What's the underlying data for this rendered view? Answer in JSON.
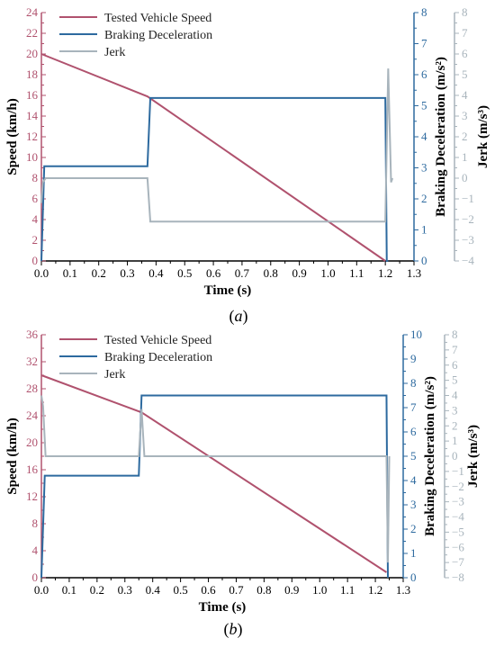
{
  "colors": {
    "speed": "#b0526e",
    "braking": "#2d6a9f",
    "jerk": "#a8b4bc",
    "axis_x": "#000000"
  },
  "chart_data": [
    {
      "type": "line",
      "panel_label_parts": [
        "(",
        "a",
        ")"
      ],
      "xlabel": "Time (s)",
      "xlim": [
        0,
        1.3
      ],
      "xticks": [
        "0.0",
        "0.1",
        "0.2",
        "0.3",
        "0.4",
        "0.5",
        "0.6",
        "0.7",
        "0.8",
        "0.9",
        "1.0",
        "1.1",
        "1.2",
        "1.3"
      ],
      "y_axes": [
        {
          "label": "Speed (km/h)",
          "ylim": [
            0,
            24
          ],
          "ticks": [
            "0",
            "2",
            "4",
            "6",
            "8",
            "10",
            "12",
            "14",
            "16",
            "18",
            "20",
            "22",
            "24"
          ]
        },
        {
          "label": "Braking Deceleration (m/s²)",
          "ylim": [
            0,
            8
          ],
          "ticks": [
            "0",
            "1",
            "2",
            "3",
            "4",
            "5",
            "6",
            "7",
            "8"
          ]
        },
        {
          "label": "Jerk (m/s³)",
          "ylim": [
            -4,
            8
          ],
          "ticks": [
            "−4",
            "−3",
            "−2",
            "−1",
            "0",
            "1",
            "2",
            "3",
            "4",
            "5",
            "6",
            "7",
            "8"
          ]
        }
      ],
      "legend": [
        "Tested Vehicle Speed",
        "Braking Deceleration",
        "Jerk"
      ],
      "legend_position": "top-left",
      "series": [
        {
          "name": "Tested Vehicle Speed",
          "axis": 0,
          "x": [
            0.0,
            0.37,
            1.2
          ],
          "y": [
            20.0,
            15.9,
            0.0
          ]
        },
        {
          "name": "Braking Deceleration",
          "axis": 1,
          "x": [
            0.0,
            0.01,
            0.37,
            0.38,
            1.2,
            1.205,
            1.21
          ],
          "y": [
            0.0,
            3.05,
            3.05,
            5.25,
            5.25,
            0.0,
            0.0
          ]
        },
        {
          "name": "Jerk",
          "axis": 2,
          "x": [
            0.0,
            0.005,
            0.015,
            0.37,
            0.38,
            1.2,
            1.21,
            1.22,
            1.225
          ],
          "y": [
            -1.2,
            -0.2,
            0.0,
            0.0,
            -2.1,
            -2.1,
            5.3,
            -0.2,
            0.0
          ]
        }
      ]
    },
    {
      "type": "line",
      "panel_label_parts": [
        "(",
        "b",
        ")"
      ],
      "xlabel": "Time (s)",
      "xlim": [
        0,
        1.3
      ],
      "xticks": [
        "0.0",
        "0.1",
        "0.2",
        "0.3",
        "0.4",
        "0.5",
        "0.6",
        "0.7",
        "0.8",
        "0.9",
        "1.0",
        "1.1",
        "1.2",
        "1.3"
      ],
      "y_axes": [
        {
          "label": "Speed (km/h)",
          "ylim": [
            0,
            36
          ],
          "ticks": [
            "0",
            "4",
            "8",
            "12",
            "16",
            "20",
            "24",
            "28",
            "32",
            "36"
          ]
        },
        {
          "label": "Braking Deceleration (m/s²)",
          "ylim": [
            0,
            10
          ],
          "ticks": [
            "0",
            "1",
            "2",
            "3",
            "4",
            "5",
            "6",
            "7",
            "8",
            "9",
            "10"
          ]
        },
        {
          "label": "Jerk (m/s³)",
          "ylim": [
            -8,
            8
          ],
          "ticks": [
            "−8",
            "−7",
            "−6",
            "−5",
            "−4",
            "−3",
            "−2",
            "−1",
            "0",
            "1",
            "2",
            "3",
            "4",
            "5",
            "6",
            "7",
            "8"
          ]
        }
      ],
      "legend": [
        "Tested Vehicle Speed",
        "Braking Deceleration",
        "Jerk"
      ],
      "legend_position": "top-left",
      "series": [
        {
          "name": "Tested Vehicle Speed",
          "axis": 0,
          "x": [
            0.0,
            0.36,
            1.24
          ],
          "y": [
            30.0,
            24.5,
            0.8
          ]
        },
        {
          "name": "Braking Deceleration",
          "axis": 1,
          "x": [
            0.0,
            0.012,
            0.35,
            0.36,
            1.24,
            1.245
          ],
          "y": [
            0.0,
            4.2,
            4.2,
            7.5,
            7.5,
            0.0
          ]
        },
        {
          "name": "Jerk",
          "axis": 2,
          "x": [
            0.0,
            0.006,
            0.015,
            0.35,
            0.36,
            0.37,
            1.24,
            1.245,
            1.25
          ],
          "y": [
            4.0,
            3.3,
            0.0,
            0.0,
            3.1,
            0.0,
            0.0,
            -7.0,
            0.0
          ]
        }
      ]
    }
  ]
}
